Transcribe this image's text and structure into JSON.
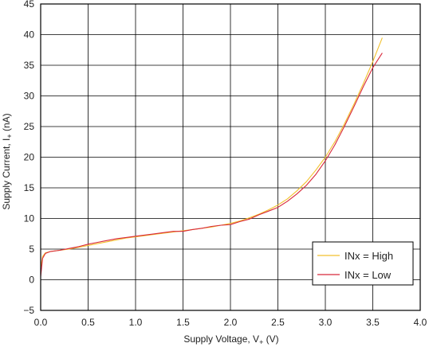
{
  "chart_data": {
    "type": "line",
    "xlabel": "Supply Voltage, V",
    "xlabel_sub": "+",
    "xlabel_unit": " (V)",
    "ylabel": "Supply Current, I",
    "ylabel_sub": "+",
    "ylabel_unit": " (nA)",
    "xlim": [
      0,
      4.0
    ],
    "ylim": [
      -5,
      45
    ],
    "x_ticks": [
      "0.0",
      "0.5",
      "1.0",
      "1.5",
      "2.0",
      "2.5",
      "3.0",
      "3.5",
      "4.0"
    ],
    "y_ticks": [
      "−5",
      "0",
      "5",
      "10",
      "15",
      "20",
      "25",
      "30",
      "35",
      "40",
      "45"
    ],
    "grid": true,
    "legend_position": "bottom-right",
    "series": [
      {
        "name": "INx = High",
        "color": "#f2c12e",
        "x": [
          0.0,
          0.02,
          0.05,
          0.1,
          0.2,
          0.3,
          0.4,
          0.5,
          0.6,
          0.7,
          0.8,
          0.9,
          1.0,
          1.1,
          1.2,
          1.3,
          1.4,
          1.5,
          1.6,
          1.7,
          1.8,
          1.9,
          2.0,
          2.1,
          2.2,
          2.3,
          2.4,
          2.5,
          2.6,
          2.7,
          2.8,
          2.9,
          3.0,
          3.1,
          3.2,
          3.3,
          3.4,
          3.5,
          3.6
        ],
        "y": [
          2.0,
          3.8,
          4.4,
          4.6,
          4.8,
          5.0,
          5.3,
          5.6,
          5.9,
          6.2,
          6.5,
          6.8,
          7.0,
          7.2,
          7.4,
          7.6,
          7.8,
          8.0,
          8.2,
          8.4,
          8.6,
          8.9,
          9.2,
          9.6,
          10.1,
          10.7,
          11.4,
          12.2,
          13.2,
          14.5,
          16.0,
          17.9,
          20.0,
          22.5,
          25.4,
          28.6,
          32.0,
          35.6,
          39.5
        ]
      },
      {
        "name": "INx = Low",
        "color": "#d8283a",
        "x": [
          0.0,
          0.02,
          0.05,
          0.1,
          0.2,
          0.3,
          0.4,
          0.5,
          0.6,
          0.7,
          0.8,
          0.9,
          1.0,
          1.1,
          1.2,
          1.3,
          1.4,
          1.5,
          1.6,
          1.7,
          1.8,
          1.9,
          2.0,
          2.1,
          2.2,
          2.3,
          2.4,
          2.5,
          2.6,
          2.7,
          2.8,
          2.9,
          3.0,
          3.1,
          3.2,
          3.3,
          3.4,
          3.5,
          3.6
        ],
        "y": [
          0.5,
          3.5,
          4.3,
          4.6,
          4.8,
          5.1,
          5.4,
          5.8,
          6.1,
          6.4,
          6.7,
          6.9,
          7.1,
          7.3,
          7.5,
          7.7,
          7.9,
          7.9,
          8.2,
          8.4,
          8.7,
          8.9,
          9.0,
          9.5,
          9.9,
          10.6,
          11.2,
          11.8,
          12.8,
          14.0,
          15.4,
          17.2,
          19.4,
          22.0,
          25.0,
          28.2,
          31.5,
          34.6,
          37.0
        ]
      }
    ]
  }
}
